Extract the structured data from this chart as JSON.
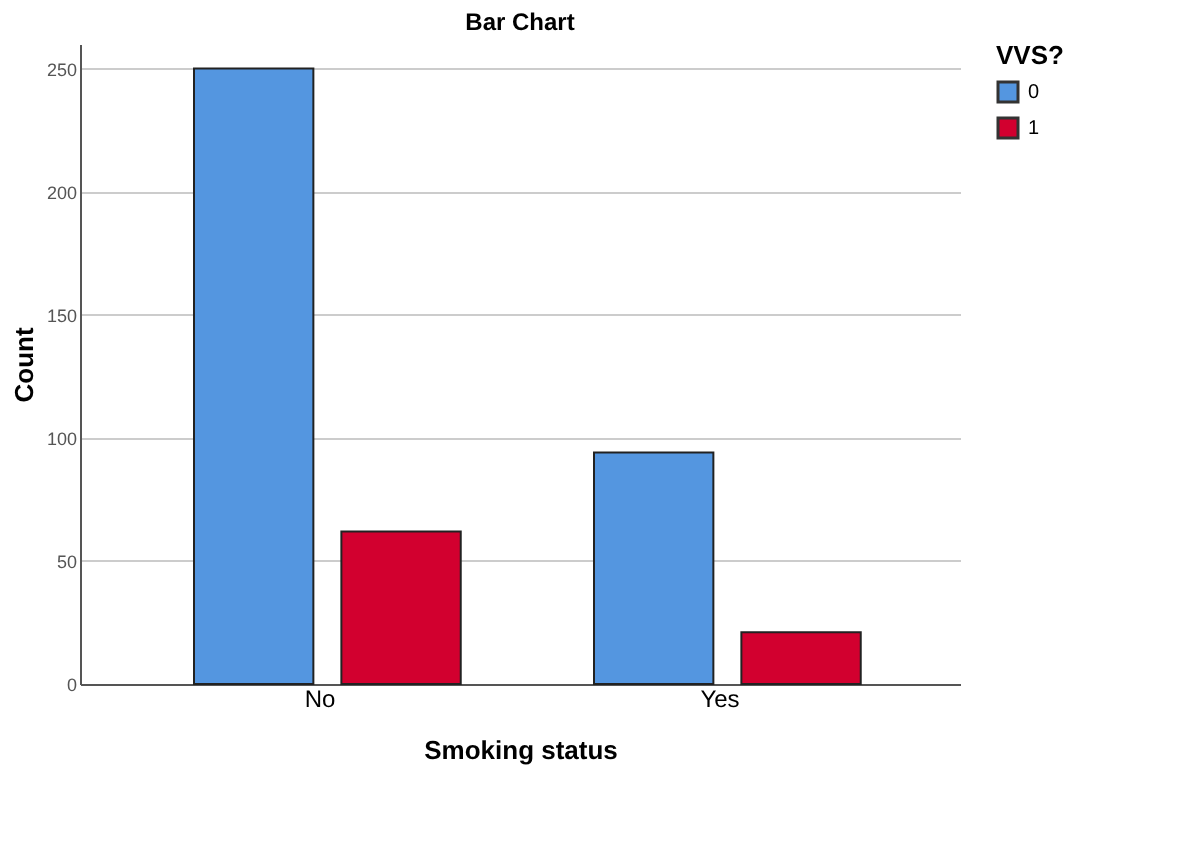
{
  "chart_data": {
    "type": "bar",
    "title": "Bar Chart",
    "xlabel": "Smoking status",
    "ylabel": "Count",
    "legend_title": "VVS?",
    "categories": [
      "No",
      "Yes"
    ],
    "series": [
      {
        "name": "0",
        "color": "#5496e0",
        "values": [
          250,
          94
        ]
      },
      {
        "name": "1",
        "color": "#d2002f",
        "values": [
          62,
          21
        ]
      }
    ],
    "ylim": [
      0,
      260
    ],
    "yticks": [
      0,
      50,
      100,
      150,
      200,
      250
    ],
    "grid": "y",
    "legend": "top right"
  }
}
